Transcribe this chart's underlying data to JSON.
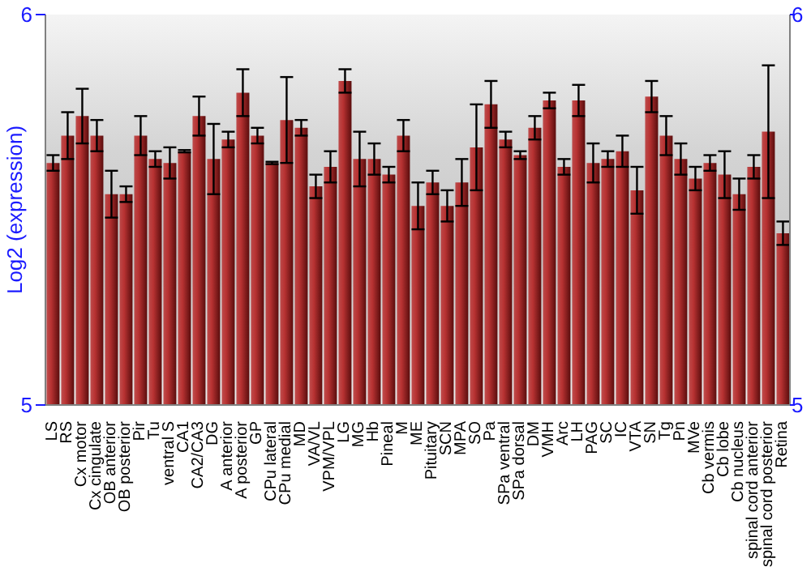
{
  "chart_data": {
    "type": "bar",
    "ylabel": "Log2 (expression)",
    "categories": [
      "LS",
      "RS",
      "Cx motor",
      "Cx cingulate",
      "OB anterior",
      "OB posterior",
      "Pir",
      "Tu",
      "ventral S",
      "CA1",
      "CA2/CA3",
      "DG",
      "A anterior",
      "A posterior",
      "GP",
      "CPu lateral",
      "CPu medial",
      "MD",
      "VA/VL",
      "VPM/VPL",
      "LG",
      "MG",
      "Hb",
      "Pineal",
      "M",
      "ME",
      "Pituitary",
      "SCN",
      "MPA",
      "SO",
      "Pa",
      "SPa ventral",
      "SPa dorsal",
      "DM",
      "VMH",
      "Arc",
      "LH",
      "PAG",
      "SC",
      "IC",
      "VTA",
      "SN",
      "Tg",
      "Pn",
      "MVe",
      "Cb vermis",
      "Cb lobe",
      "Cb nucleus",
      "spinal cord anterior",
      "spinal cord posterior",
      "Retina"
    ],
    "values": [
      5.62,
      5.69,
      5.74,
      5.69,
      5.54,
      5.54,
      5.69,
      5.63,
      5.62,
      5.65,
      5.74,
      5.63,
      5.68,
      5.8,
      5.69,
      5.62,
      5.73,
      5.71,
      5.56,
      5.61,
      5.83,
      5.63,
      5.63,
      5.59,
      5.69,
      5.51,
      5.57,
      5.51,
      5.57,
      5.66,
      5.77,
      5.68,
      5.64,
      5.71,
      5.78,
      5.61,
      5.78,
      5.62,
      5.63,
      5.65,
      5.55,
      5.79,
      5.69,
      5.63,
      5.58,
      5.62,
      5.59,
      5.54,
      5.61,
      5.7,
      5.44
    ],
    "errors": [
      0.02,
      0.06,
      0.07,
      0.04,
      0.06,
      0.02,
      0.05,
      0.02,
      0.04,
      0.003,
      0.05,
      0.09,
      0.02,
      0.06,
      0.02,
      0.003,
      0.11,
      0.02,
      0.03,
      0.04,
      0.03,
      0.07,
      0.04,
      0.02,
      0.04,
      0.06,
      0.03,
      0.04,
      0.06,
      0.11,
      0.06,
      0.02,
      0.01,
      0.03,
      0.02,
      0.02,
      0.04,
      0.05,
      0.02,
      0.04,
      0.06,
      0.04,
      0.05,
      0.04,
      0.03,
      0.02,
      0.06,
      0.04,
      0.03,
      0.17,
      0.03
    ],
    "color": "#b83232",
    "ylim": [
      5,
      6
    ],
    "yticks": [
      5,
      6
    ],
    "y2lim": [
      5,
      6
    ],
    "y2ticks": [
      5,
      6
    ]
  }
}
